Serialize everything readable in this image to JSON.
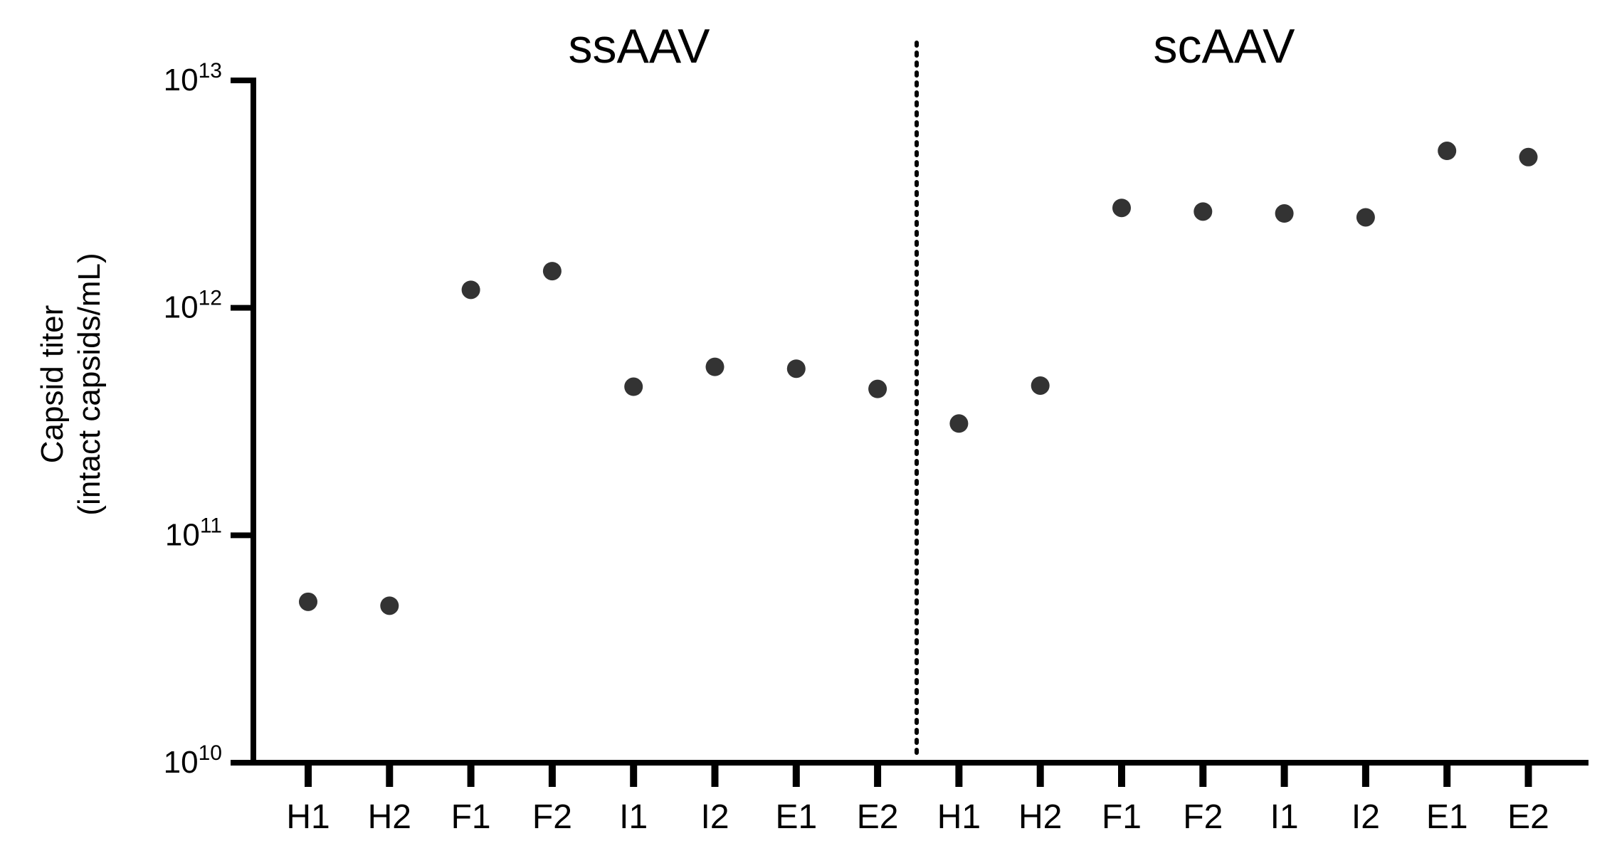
{
  "chart_data": {
    "type": "scatter",
    "title": "",
    "xlabel": "",
    "ylabel_line1": "Capsid titer",
    "ylabel_line2": "(intact capsids/mL)",
    "yscale": "log",
    "ylim": [
      10000000000.0,
      10000000000000.0
    ],
    "y_tick_base": "10",
    "y_tick_exponents": [
      "10",
      "11",
      "12",
      "13"
    ],
    "grid": false,
    "legend": "none",
    "marker_color": "#333333",
    "groups": [
      {
        "label": "ssAAV",
        "categories": [
          "H1",
          "H2",
          "F1",
          "F2",
          "I1",
          "I2",
          "E1",
          "E2"
        ],
        "values": [
          51000000000.0,
          49000000000.0,
          1200000000000.0,
          1450000000000.0,
          450000000000.0,
          550000000000.0,
          540000000000.0,
          440000000000.0
        ]
      },
      {
        "label": "scAAV",
        "categories": [
          "H1",
          "H2",
          "F1",
          "F2",
          "I1",
          "I2",
          "E1",
          "E2"
        ],
        "values": [
          310000000000.0,
          455000000000.0,
          2750000000000.0,
          2650000000000.0,
          2600000000000.0,
          2500000000000.0,
          4900000000000.0,
          4600000000000.0
        ]
      }
    ]
  }
}
